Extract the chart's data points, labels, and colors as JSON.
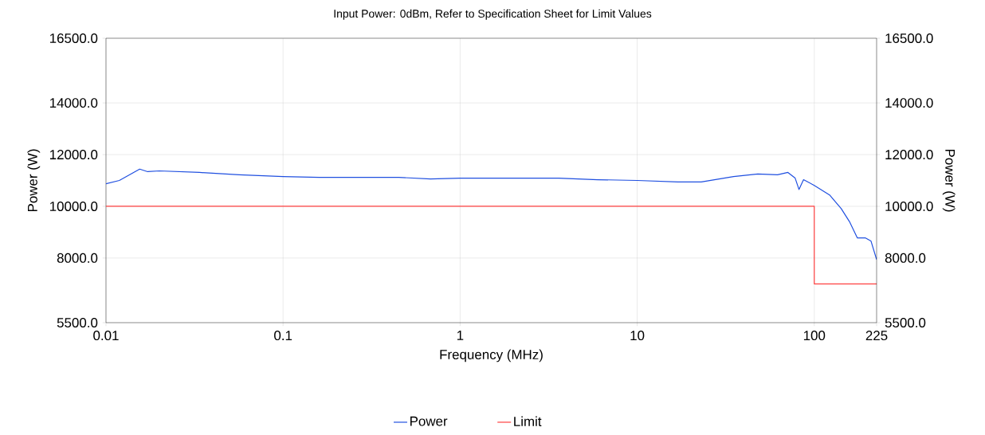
{
  "chart_data": {
    "type": "line",
    "title": "Input Power: 0dBm, Refer to Specification Sheet for Limit Values",
    "xlabel": "Frequency (MHz)",
    "ylabel": "Power (W)",
    "y2label": "Power (W)",
    "log": "x",
    "grid": true,
    "legend": "bottom",
    "marker": "none",
    "line_style": "solid",
    "xlim": [
      0.01,
      225
    ],
    "xticks": [
      0.01,
      0.1,
      1,
      10,
      100,
      225
    ],
    "ylim": [
      5500,
      16500
    ],
    "yticks": [
      {
        "value": 5500,
        "label": "5500.0"
      },
      {
        "value": 8000,
        "label": "8000.0"
      },
      {
        "value": 10000,
        "label": "10000.0"
      },
      {
        "value": 12000,
        "label": "12000.0"
      },
      {
        "value": 14000,
        "label": "14000.0"
      },
      {
        "value": 16500,
        "label": "16500.0"
      }
    ],
    "y2lim": [
      5500,
      16500
    ],
    "y2ticks": [
      {
        "value": 5500,
        "label": "5500.0"
      },
      {
        "value": 8000,
        "label": "8000.0"
      },
      {
        "value": 10000,
        "label": "10000.0"
      },
      {
        "value": 12000,
        "label": "12000.0"
      },
      {
        "value": 14000,
        "label": "14000.0"
      },
      {
        "value": 16500,
        "label": "16500.0"
      }
    ],
    "series": [
      {
        "name": "Power",
        "color": "#1f4fe0",
        "x": [
          0.01,
          0.0119,
          0.0155,
          0.0172,
          0.02,
          0.0337,
          0.0565,
          0.1,
          0.16,
          0.45,
          0.68,
          1,
          3.6,
          6,
          10,
          17,
          23,
          35,
          48,
          62,
          71,
          78,
          82,
          87,
          100,
          122,
          142,
          158,
          175,
          194,
          209,
          225
        ],
        "values": [
          10870,
          11000,
          11440,
          11340,
          11370,
          11310,
          11220,
          11150,
          11120,
          11120,
          11060,
          11090,
          11090,
          11030,
          11000,
          10940,
          10940,
          11150,
          11250,
          11220,
          11310,
          11090,
          10650,
          11030,
          10810,
          10440,
          9910,
          9410,
          8780,
          8780,
          8660,
          7940
        ]
      },
      {
        "name": "Limit",
        "type": "step",
        "color": "#ff4040",
        "x": [
          0.01,
          100,
          225
        ],
        "values": [
          10000,
          7000,
          7000
        ]
      }
    ]
  }
}
